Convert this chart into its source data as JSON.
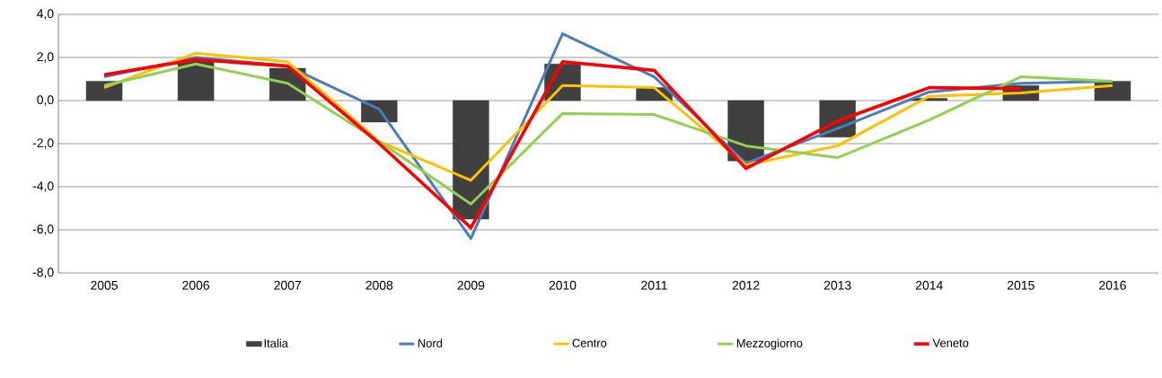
{
  "chart_data": {
    "type": "bar",
    "categories": [
      "2005",
      "2006",
      "2007",
      "2008",
      "2009",
      "2010",
      "2011",
      "2012",
      "2013",
      "2014",
      "2015",
      "2016"
    ],
    "series": [
      {
        "name": "Italia",
        "color": "#404040",
        "values": [
          0.9,
          1.9,
          1.5,
          -1.0,
          -5.5,
          1.7,
          0.6,
          -2.8,
          -1.7,
          0.1,
          0.7,
          0.9
        ]
      },
      {
        "name": "Nord",
        "type": "line",
        "color": "#4a7ebb",
        "values": [
          1.1,
          2.0,
          1.6,
          -0.4,
          -6.4,
          3.1,
          1.1,
          -2.9,
          -1.3,
          0.4,
          0.8,
          0.9
        ]
      },
      {
        "name": "Centro",
        "type": "line",
        "color": "#ffc000",
        "values": [
          0.6,
          2.2,
          1.8,
          -1.9,
          -3.7,
          0.7,
          0.6,
          -3.0,
          -2.1,
          0.2,
          0.35,
          0.7
        ]
      },
      {
        "name": "Mezzogiorno",
        "type": "line",
        "color": "#92d050",
        "values": [
          0.7,
          1.7,
          0.8,
          -1.9,
          -4.8,
          -0.6,
          -0.65,
          -2.1,
          -2.65,
          -0.9,
          1.1,
          0.9
        ]
      },
      {
        "name": "Veneto",
        "type": "line",
        "color": "#ff0000",
        "values": [
          1.2,
          1.9,
          1.6,
          -2.0,
          -5.9,
          1.8,
          1.4,
          -3.15,
          -0.95,
          0.6,
          0.55,
          null
        ]
      }
    ],
    "ylim": [
      -8,
      4
    ],
    "yticks": [
      {
        "value": -8,
        "label": "-8,0"
      },
      {
        "value": -6,
        "label": "-6,0"
      },
      {
        "value": -4,
        "label": "-4,0"
      },
      {
        "value": -2,
        "label": "-2,0"
      },
      {
        "value": 0,
        "label": "0,0"
      },
      {
        "value": 2,
        "label": "2,0"
      },
      {
        "value": 4,
        "label": "4,0"
      }
    ],
    "grid": "y",
    "legend": "bottom"
  }
}
